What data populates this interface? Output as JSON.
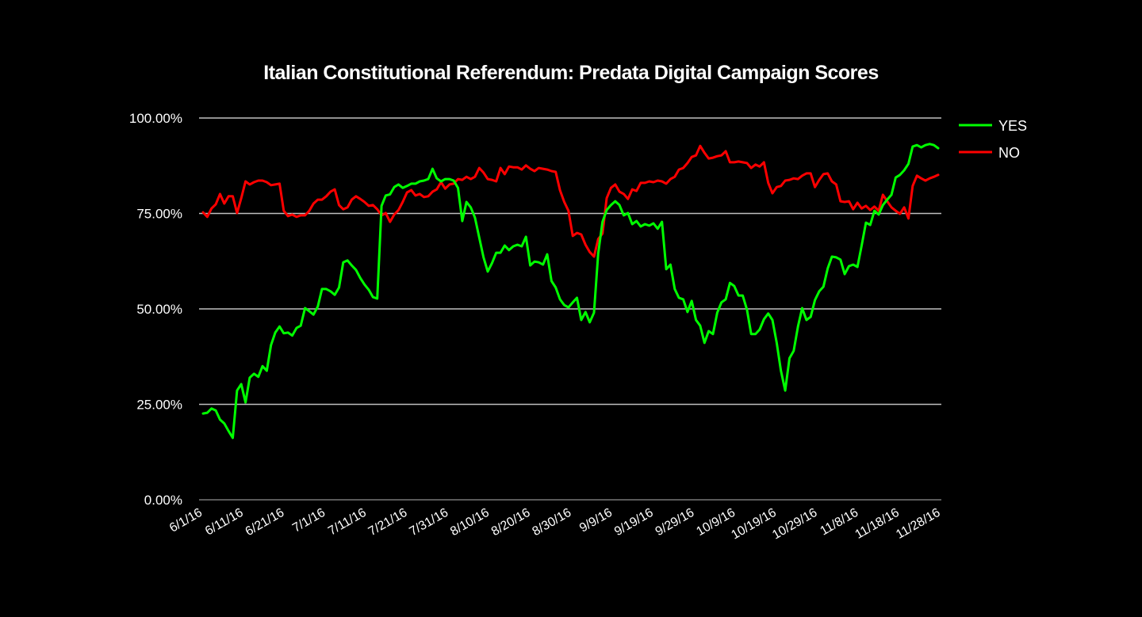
{
  "chart_data": {
    "type": "line",
    "title": "Italian Constitutional Referendum: Predata Digital Campaign Scores",
    "xlabel": "",
    "ylabel": "",
    "ylim": [
      0,
      100
    ],
    "yticks": [
      "0.00%",
      "25.00%",
      "50.00%",
      "75.00%",
      "100.00%"
    ],
    "ytick_values": [
      0,
      25,
      50,
      75,
      100
    ],
    "xticks": [
      "6/1/16",
      "6/11/16",
      "6/21/16",
      "7/1/16",
      "7/11/16",
      "7/21/16",
      "7/31/16",
      "8/10/16",
      "8/20/16",
      "8/30/16",
      "9/9/16",
      "9/19/16",
      "9/29/16",
      "10/9/16",
      "10/19/16",
      "10/29/16",
      "11/8/16",
      "11/18/16",
      "11/28/16"
    ],
    "x_start": "6/1/16",
    "x_step_days": 1,
    "grid": true,
    "legend_position": "right",
    "series": [
      {
        "name": "YES",
        "color": "#00ff00",
        "values": [
          22.6,
          22.8,
          23.9,
          23.4,
          21,
          20,
          18,
          16.2,
          28.6,
          30.3,
          25.5,
          32,
          33,
          32.2,
          35,
          33.8,
          40.5,
          43.8,
          45.4,
          43.6,
          43.8,
          43,
          45,
          45.6,
          50.2,
          49.4,
          48.5,
          50.6,
          55.2,
          55.2,
          54.6,
          53.7,
          55.6,
          62.2,
          62.7,
          61.4,
          60.2,
          58.1,
          56.4,
          55,
          53.1,
          52.7,
          77,
          79.7,
          80,
          81.9,
          82.6,
          81.7,
          82.2,
          82.8,
          82.8,
          83.4,
          83.6,
          84,
          86.7,
          84.2,
          83.4,
          84,
          84,
          83.6,
          81.7,
          73,
          78,
          76.6,
          73.9,
          68.7,
          63.5,
          59.8,
          62,
          64.7,
          64.7,
          66.6,
          65.4,
          66.4,
          66.8,
          66.4,
          68.9,
          61.4,
          62.4,
          62.2,
          61.6,
          64.3,
          57.3,
          55.6,
          52.5,
          51,
          50.4,
          51.7,
          52.9,
          47.1,
          49.2,
          46.5,
          49,
          64.5,
          72.8,
          75.9,
          77.2,
          78.2,
          77.2,
          74.5,
          75.1,
          72.2,
          73,
          71.6,
          72.2,
          71.8,
          72.4,
          71,
          72.8,
          60.4,
          61.6,
          55.2,
          52.9,
          52.5,
          49.2,
          52.1,
          47.1,
          45.6,
          41.1,
          44.2,
          43.4,
          49,
          51.7,
          52.5,
          56.8,
          56,
          53.5,
          53.5,
          49.8,
          43.4,
          43.4,
          44.6,
          47.3,
          48.8,
          47.1,
          41.1,
          33.8,
          28.6,
          37.1,
          39,
          45.4,
          50.2,
          47.1,
          47.9,
          52.3,
          54.6,
          55.8,
          60.6,
          63.7,
          63.5,
          62.9,
          59.1,
          61.2,
          61.6,
          61,
          66.6,
          72.6,
          72,
          75.7,
          74.7,
          77.2,
          78.6,
          79.9,
          84.4,
          85.1,
          86.3,
          88,
          92.5,
          92.9,
          92.3,
          92.9,
          93.2,
          92.9,
          92.1
        ]
      },
      {
        "name": "NO",
        "color": "#ff0000",
        "values": [
          75.3,
          74.1,
          76.3,
          77.4,
          80.1,
          77.6,
          79.5,
          79.5,
          75.1,
          79,
          83.4,
          82.6,
          83.2,
          83.6,
          83.6,
          83.2,
          82.4,
          82.6,
          82.8,
          75.7,
          74.3,
          74.7,
          74.1,
          74.5,
          74.5,
          75.7,
          77.6,
          78.6,
          78.6,
          79.5,
          80.7,
          81.3,
          77.2,
          76.1,
          76.6,
          78.6,
          79.5,
          78.8,
          78,
          77,
          77.2,
          76.1,
          74.5,
          75.1,
          72.8,
          74.7,
          75.9,
          78,
          80.5,
          81.1,
          79.7,
          80.1,
          79.3,
          79.5,
          80.7,
          81.3,
          83.2,
          81.5,
          82.6,
          82.8,
          84,
          83.8,
          84.6,
          84,
          84.6,
          86.9,
          85.7,
          84,
          83.8,
          83.4,
          86.9,
          85.3,
          87.3,
          87.1,
          87.1,
          86.5,
          87.6,
          86.7,
          86.1,
          86.9,
          86.7,
          86.5,
          86.1,
          85.9,
          81.1,
          78,
          75.7,
          69.1,
          69.9,
          69.5,
          66.8,
          64.9,
          63.7,
          68.3,
          69.7,
          79,
          81.7,
          82.6,
          80.7,
          80.1,
          78.8,
          81.3,
          80.9,
          83,
          83,
          83.4,
          83.2,
          83.6,
          83.4,
          82.8,
          84,
          84.6,
          86.5,
          86.9,
          88.2,
          89.8,
          90.2,
          92.7,
          90.9,
          89.4,
          89.6,
          90,
          90.2,
          91.3,
          88.4,
          88.4,
          88.6,
          88.4,
          88.2,
          86.9,
          87.8,
          87.3,
          88.4,
          83,
          80.3,
          81.9,
          82.2,
          83.6,
          83.8,
          84.2,
          84,
          84.9,
          85.5,
          85.5,
          81.9,
          83.8,
          85.3,
          85.5,
          83.4,
          82.6,
          78.2,
          78,
          78.2,
          76.1,
          77.8,
          76.3,
          77,
          75.9,
          76.8,
          75.7,
          79.9,
          78.2,
          76.6,
          75.7,
          74.9,
          76.6,
          73.7,
          82.2,
          84.9,
          84.2,
          83.6,
          84.2,
          84.6,
          85.1
        ]
      }
    ]
  },
  "legend": {
    "items": [
      {
        "label": "YES",
        "color": "#00ff00"
      },
      {
        "label": "NO",
        "color": "#ff0000"
      }
    ]
  },
  "colors": {
    "background": "#000000",
    "gridline": "#bfbfbf",
    "axis": "#595959",
    "text": "#ffffff"
  }
}
